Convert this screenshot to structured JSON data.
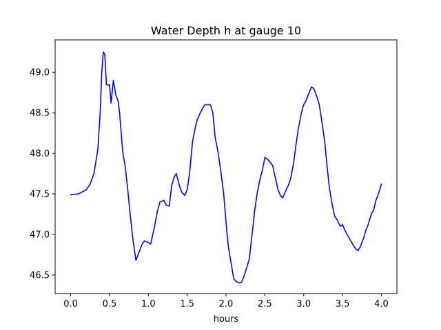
{
  "chart_data": {
    "type": "line",
    "title": "Water Depth h at gauge 10",
    "xlabel": "hours",
    "ylabel": "",
    "xlim": [
      -0.2,
      4.2
    ],
    "ylim": [
      46.27,
      49.4
    ],
    "xticks": [
      0.0,
      0.5,
      1.0,
      1.5,
      2.0,
      2.5,
      3.0,
      3.5,
      4.0
    ],
    "xtick_labels": [
      "0.0",
      "0.5",
      "1.0",
      "1.5",
      "2.0",
      "2.5",
      "3.0",
      "3.5",
      "4.0"
    ],
    "yticks": [
      46.5,
      47.0,
      47.5,
      48.0,
      48.5,
      49.0
    ],
    "ytick_labels": [
      "46.5",
      "47.0",
      "47.5",
      "48.0",
      "48.5",
      "49.0"
    ],
    "grid": false,
    "line_color": "#0000ff",
    "series": [
      {
        "x": [
          0.0,
          0.1,
          0.2,
          0.25,
          0.3,
          0.35,
          0.38,
          0.4,
          0.42,
          0.44,
          0.46,
          0.48,
          0.5,
          0.52,
          0.55,
          0.58,
          0.61,
          0.63,
          0.67,
          0.7,
          0.73,
          0.76,
          0.8,
          0.84,
          0.88,
          0.92,
          0.95,
          1.0,
          1.03,
          1.08,
          1.12,
          1.15,
          1.2,
          1.23,
          1.27,
          1.3,
          1.33,
          1.36,
          1.4,
          1.43,
          1.47,
          1.5,
          1.53,
          1.57,
          1.6,
          1.63,
          1.67,
          1.7,
          1.73,
          1.76,
          1.8,
          1.83,
          1.86,
          1.9,
          1.93,
          1.97,
          2.0,
          2.03,
          2.07,
          2.1,
          2.13,
          2.17,
          2.2,
          2.23,
          2.27,
          2.3,
          2.33,
          2.37,
          2.4,
          2.43,
          2.47,
          2.5,
          2.53,
          2.56,
          2.6,
          2.63,
          2.67,
          2.7,
          2.73,
          2.76,
          2.8,
          2.83,
          2.87,
          2.9,
          2.93,
          2.97,
          3.0,
          3.03,
          3.07,
          3.1,
          3.13,
          3.17,
          3.2,
          3.23,
          3.27,
          3.3,
          3.33,
          3.37,
          3.4,
          3.43,
          3.47,
          3.5,
          3.53,
          3.57,
          3.6,
          3.63,
          3.67,
          3.7,
          3.73,
          3.77,
          3.8,
          3.83,
          3.87,
          3.9,
          3.93,
          3.97,
          4.0
        ],
        "y": [
          47.49,
          47.5,
          47.55,
          47.62,
          47.75,
          48.05,
          48.5,
          49.0,
          49.25,
          49.22,
          48.85,
          48.84,
          48.85,
          48.62,
          48.9,
          48.72,
          48.65,
          48.5,
          48.02,
          47.85,
          47.6,
          47.3,
          46.95,
          46.68,
          46.78,
          46.88,
          46.92,
          46.9,
          46.88,
          47.1,
          47.3,
          47.4,
          47.42,
          47.36,
          47.35,
          47.6,
          47.7,
          47.75,
          47.6,
          47.52,
          47.48,
          47.55,
          47.75,
          48.15,
          48.3,
          48.42,
          48.5,
          48.56,
          48.6,
          48.6,
          48.6,
          48.5,
          48.2,
          48.0,
          47.8,
          47.5,
          47.15,
          46.85,
          46.62,
          46.45,
          46.42,
          46.4,
          46.41,
          46.48,
          46.6,
          46.7,
          46.95,
          47.3,
          47.5,
          47.65,
          47.8,
          47.95,
          47.93,
          47.9,
          47.85,
          47.72,
          47.55,
          47.48,
          47.45,
          47.52,
          47.6,
          47.68,
          47.88,
          48.1,
          48.3,
          48.5,
          48.6,
          48.65,
          48.75,
          48.82,
          48.8,
          48.7,
          48.6,
          48.42,
          48.15,
          47.85,
          47.58,
          47.35,
          47.22,
          47.18,
          47.1,
          47.12,
          47.05,
          46.98,
          46.93,
          46.88,
          46.82,
          46.8,
          46.85,
          46.95,
          47.05,
          47.12,
          47.25,
          47.3,
          47.42,
          47.52,
          47.62
        ]
      }
    ]
  }
}
